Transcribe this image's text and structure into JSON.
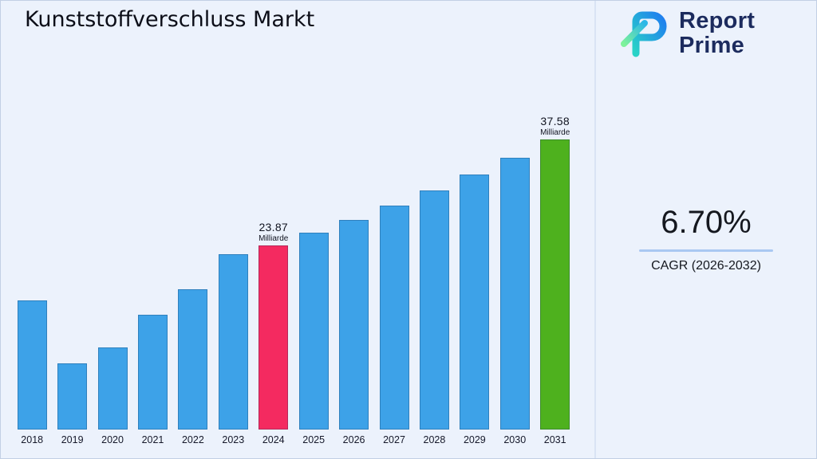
{
  "title": "Kunststoffverschluss Markt",
  "logo": {
    "line1": "Report",
    "line2": "Prime"
  },
  "stats": {
    "cagr_value": "6.70%",
    "cagr_label": "CAGR (2026-2032)"
  },
  "chart_data": {
    "type": "bar",
    "title": "Kunststoffverschluss Markt",
    "unit": "Milliarde",
    "categories": [
      "2018",
      "2019",
      "2020",
      "2021",
      "2022",
      "2023",
      "2024",
      "2025",
      "2026",
      "2027",
      "2028",
      "2029",
      "2030",
      "2031"
    ],
    "values": [
      16.7,
      8.6,
      10.6,
      14.9,
      18.2,
      22.7,
      23.87,
      25.47,
      27.18,
      29.0,
      30.94,
      33.01,
      35.22,
      37.58
    ],
    "ylim": [
      0,
      45
    ],
    "grid": false,
    "legend": false,
    "x_axis_labels_shown": true,
    "bar_color": "#3DA2E8",
    "color_overrides": {
      "2024": "#F42A60",
      "2031": "#4EB11E"
    },
    "annotations": [
      {
        "category": "2024",
        "value_label": "23.87",
        "unit_label": "Milliarde"
      },
      {
        "category": "2031",
        "value_label": "37.58",
        "unit_label": "Milliarde"
      }
    ]
  }
}
